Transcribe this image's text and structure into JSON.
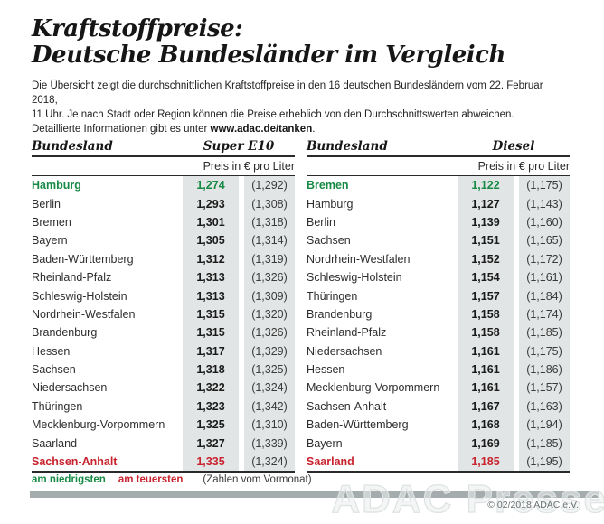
{
  "title": {
    "line1": "Kraftstoffpreise:",
    "line2": "Deutsche Bundesländer im Vergleich"
  },
  "intro": {
    "line1": "Die Übersicht zeigt die durchschnittlichen Kraftstoffpreise in den 16 deutschen Bundesländern vom 22. Februar 2018,",
    "line2": "11 Uhr. Je nach Stadt oder Region können die Preise erheblich von den Durchschnittswerten abweichen.",
    "line3_prefix": "Detaillierte Informationen gibt es unter ",
    "link": "www.adac.de/tanken",
    "line3_suffix": "."
  },
  "tables": [
    {
      "bundesland_header": "Bundesland",
      "fuel_label": "Super E10",
      "price_header": "Preis in € pro Liter",
      "rows": [
        {
          "name": "Hamburg",
          "price": "1,274",
          "prev": "(1,292)",
          "highlight": "lowest"
        },
        {
          "name": "Berlin",
          "price": "1,293",
          "prev": "(1,308)",
          "highlight": ""
        },
        {
          "name": "Bremen",
          "price": "1,301",
          "prev": "(1,318)",
          "highlight": ""
        },
        {
          "name": "Bayern",
          "price": "1,305",
          "prev": "(1,314)",
          "highlight": ""
        },
        {
          "name": "Baden-Württemberg",
          "price": "1,312",
          "prev": "(1,319)",
          "highlight": ""
        },
        {
          "name": "Rheinland-Pfalz",
          "price": "1,313",
          "prev": "(1,326)",
          "highlight": ""
        },
        {
          "name": "Schleswig-Holstein",
          "price": "1,313",
          "prev": "(1,309)",
          "highlight": ""
        },
        {
          "name": "Nordrhein-Westfalen",
          "price": "1,315",
          "prev": "(1,320)",
          "highlight": ""
        },
        {
          "name": "Brandenburg",
          "price": "1,315",
          "prev": "(1,326)",
          "highlight": ""
        },
        {
          "name": "Hessen",
          "price": "1,317",
          "prev": "(1,329)",
          "highlight": ""
        },
        {
          "name": "Sachsen",
          "price": "1,318",
          "prev": "(1,325)",
          "highlight": ""
        },
        {
          "name": "Niedersachsen",
          "price": "1,322",
          "prev": "(1,324)",
          "highlight": ""
        },
        {
          "name": "Thüringen",
          "price": "1,323",
          "prev": "(1,342)",
          "highlight": ""
        },
        {
          "name": "Mecklenburg-Vorpommern",
          "price": "1,325",
          "prev": "(1,310)",
          "highlight": ""
        },
        {
          "name": "Saarland",
          "price": "1,327",
          "prev": "(1,339)",
          "highlight": ""
        },
        {
          "name": "Sachsen-Anhalt",
          "price": "1,335",
          "prev": "(1,324)",
          "highlight": "highest"
        }
      ]
    },
    {
      "bundesland_header": "Bundesland",
      "fuel_label": "Diesel",
      "price_header": "Preis in € pro Liter",
      "rows": [
        {
          "name": "Bremen",
          "price": "1,122",
          "prev": "(1,175)",
          "highlight": "lowest"
        },
        {
          "name": "Hamburg",
          "price": "1,127",
          "prev": "(1,143)",
          "highlight": ""
        },
        {
          "name": "Berlin",
          "price": "1,139",
          "prev": "(1,160)",
          "highlight": ""
        },
        {
          "name": "Sachsen",
          "price": "1,151",
          "prev": "(1,165)",
          "highlight": ""
        },
        {
          "name": "Nordrhein-Westfalen",
          "price": "1,152",
          "prev": "(1,172)",
          "highlight": ""
        },
        {
          "name": "Schleswig-Holstein",
          "price": "1,154",
          "prev": "(1,161)",
          "highlight": ""
        },
        {
          "name": "Thüringen",
          "price": "1,157",
          "prev": "(1,184)",
          "highlight": ""
        },
        {
          "name": "Brandenburg",
          "price": "1,158",
          "prev": "(1,174)",
          "highlight": ""
        },
        {
          "name": "Rheinland-Pfalz",
          "price": "1,158",
          "prev": "(1,185)",
          "highlight": ""
        },
        {
          "name": "Niedersachsen",
          "price": "1,161",
          "prev": "(1,175)",
          "highlight": ""
        },
        {
          "name": "Hessen",
          "price": "1,161",
          "prev": "(1,186)",
          "highlight": ""
        },
        {
          "name": "Mecklenburg-Vorpommern",
          "price": "1,161",
          "prev": "(1,157)",
          "highlight": ""
        },
        {
          "name": "Sachsen-Anhalt",
          "price": "1,167",
          "prev": "(1,163)",
          "highlight": ""
        },
        {
          "name": "Baden-Württemberg",
          "price": "1,168",
          "prev": "(1,194)",
          "highlight": ""
        },
        {
          "name": "Bayern",
          "price": "1,169",
          "prev": "(1,185)",
          "highlight": ""
        },
        {
          "name": "Saarland",
          "price": "1,185",
          "prev": "(1,195)",
          "highlight": "highest"
        }
      ]
    }
  ],
  "legend": {
    "lowest": "am niedrigsten",
    "highest": "am teuersten",
    "note": "(Zahlen vom Vormonat)"
  },
  "footer": {
    "copyright": "© 02/2018 ADAC e.V.",
    "watermark": "ADAC Presse"
  },
  "colors": {
    "green": "#168a44",
    "red": "#c8232e",
    "band": "#e2e5e5",
    "bar": "#a5acad"
  }
}
